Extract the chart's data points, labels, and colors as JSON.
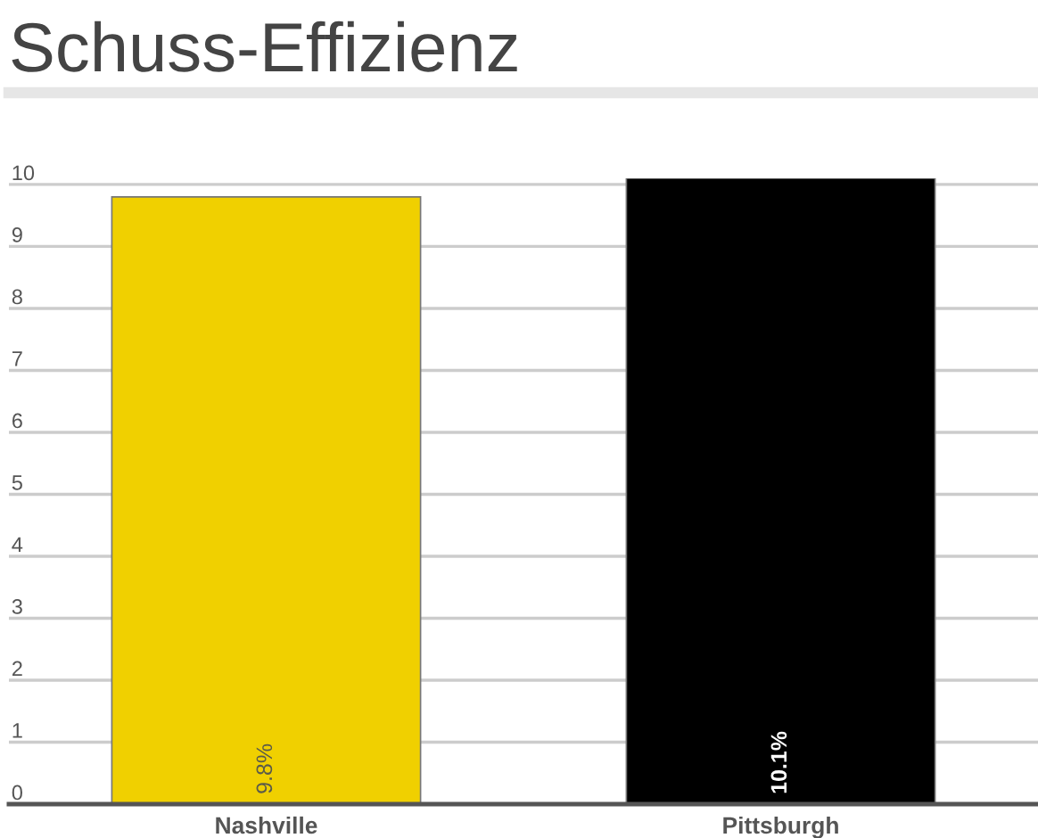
{
  "chart_data": {
    "type": "bar",
    "title": "Schuss-Effizienz",
    "categories": [
      "Nashville",
      "Pittsburgh"
    ],
    "values": [
      9.8,
      10.1
    ],
    "colors": [
      "#f0d000",
      "#000000"
    ],
    "ylim": [
      0,
      10.1
    ],
    "yticks": [
      0,
      1,
      2,
      3,
      4,
      5,
      6,
      7,
      8,
      9,
      10
    ],
    "grid": "y",
    "value_labels": [
      "9.8%",
      "10.1%"
    ]
  }
}
